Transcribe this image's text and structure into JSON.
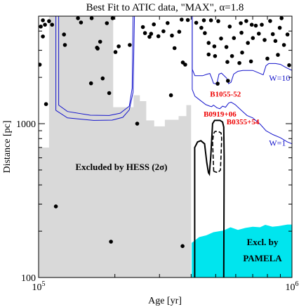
{
  "chart_data": {
    "type": "scatter",
    "title": "Best Fit to ATIC data, \"MAX\", α=1.8",
    "xlabel": "Age [yr]",
    "ylabel": "Distance [pc]",
    "xscale": "log",
    "yscale": "log",
    "xlim": [
      100000,
      1000000
    ],
    "ylim": [
      100,
      5000
    ],
    "grid": false,
    "x_ticks": [
      {
        "value": 100000,
        "base": "10",
        "exp": "5"
      },
      {
        "value": 1000000,
        "base": "10",
        "exp": "6"
      }
    ],
    "y_ticks": [
      {
        "value": 100,
        "label": "100"
      },
      {
        "value": 1000,
        "label": "1000"
      }
    ],
    "colors": {
      "hess_region": "#d9d9d9",
      "pamela_region": "#00e5ee",
      "contours": "#1515cc",
      "pulsar_labels": "#ee0000",
      "best_fit": "#000000"
    },
    "regions": [
      {
        "name": "hess-exclusion",
        "label": "Excluded by HESS (2σ)",
        "fill": "#d9d9d9",
        "points": [
          [
            100000,
            100
          ],
          [
            100000,
            700
          ],
          [
            110000,
            700
          ],
          [
            110000,
            5000
          ],
          [
            197000,
            5000
          ],
          [
            197000,
            1280
          ],
          [
            237000,
            1280
          ],
          [
            237000,
            1530
          ],
          [
            251000,
            1530
          ],
          [
            251000,
            1400
          ],
          [
            266000,
            1400
          ],
          [
            266000,
            1050
          ],
          [
            286000,
            1050
          ],
          [
            286000,
            960
          ],
          [
            315000,
            960
          ],
          [
            315000,
            1060
          ],
          [
            357000,
            1060
          ],
          [
            357000,
            1120
          ],
          [
            383000,
            1120
          ],
          [
            383000,
            1320
          ],
          [
            400000,
            1320
          ],
          [
            400000,
            100
          ]
        ]
      },
      {
        "name": "pamela-exclusion",
        "label_line1": "Excl. by",
        "label_line2": "PAMELA",
        "fill": "#00e5ee",
        "points": [
          [
            402000,
            100
          ],
          [
            402000,
            168
          ],
          [
            430000,
            183
          ],
          [
            459000,
            188
          ],
          [
            490000,
            197
          ],
          [
            537000,
            202
          ],
          [
            572000,
            212
          ],
          [
            612000,
            204
          ],
          [
            656000,
            210
          ],
          [
            700000,
            214
          ],
          [
            748000,
            212
          ],
          [
            785000,
            220
          ],
          [
            837000,
            214
          ],
          [
            888000,
            216
          ],
          [
            960000,
            221
          ],
          [
            1000000,
            221
          ],
          [
            1000000,
            100
          ]
        ]
      }
    ],
    "contours": [
      {
        "label": "W=10",
        "points": [
          [
            404000,
            5000
          ],
          [
            404000,
            2260
          ],
          [
            414000,
            2050
          ],
          [
            444000,
            2050
          ],
          [
            463000,
            2100
          ],
          [
            474000,
            2120
          ],
          [
            482000,
            1980
          ],
          [
            490000,
            1830
          ],
          [
            505000,
            1810
          ],
          [
            515000,
            2100
          ],
          [
            527000,
            2130
          ],
          [
            552000,
            1980
          ],
          [
            562000,
            1820
          ],
          [
            575000,
            1860
          ],
          [
            589000,
            2100
          ],
          [
            612000,
            2190
          ],
          [
            640000,
            2220
          ],
          [
            700000,
            2220
          ],
          [
            770000,
            2080
          ],
          [
            790000,
            2380
          ],
          [
            810000,
            2460
          ],
          [
            860000,
            2460
          ],
          [
            900000,
            2430
          ],
          [
            955000,
            2300
          ],
          [
            1000000,
            2220
          ]
        ]
      },
      {
        "label": "W=1",
        "points": [
          [
            404000,
            5000
          ],
          [
            404000,
            1670
          ],
          [
            414000,
            1510
          ],
          [
            434000,
            1420
          ],
          [
            457000,
            1330
          ],
          [
            474000,
            1300
          ],
          [
            482000,
            1290
          ],
          [
            490000,
            1320
          ],
          [
            505000,
            1270
          ],
          [
            519000,
            1250
          ],
          [
            532000,
            1300
          ],
          [
            547000,
            1280
          ],
          [
            562000,
            1360
          ],
          [
            575000,
            1380
          ],
          [
            597000,
            1330
          ],
          [
            628000,
            1230
          ],
          [
            665000,
            1130
          ],
          [
            700000,
            1090
          ],
          [
            750000,
            990
          ],
          [
            790000,
            900
          ],
          [
            840000,
            850
          ],
          [
            900000,
            810
          ],
          [
            960000,
            760
          ],
          [
            1000000,
            740
          ]
        ]
      },
      {
        "label": "",
        "points": [
          [
            120000,
            5000
          ],
          [
            120000,
            1320
          ],
          [
            130000,
            1200
          ],
          [
            160000,
            1135
          ],
          [
            190000,
            1130
          ],
          [
            210000,
            1170
          ],
          [
            228000,
            1300
          ],
          [
            234000,
            1700
          ],
          [
            236000,
            5000
          ]
        ]
      },
      {
        "label": "",
        "points": [
          [
            117000,
            5000
          ],
          [
            117000,
            1220
          ],
          [
            130000,
            1090
          ],
          [
            165000,
            1050
          ],
          [
            195000,
            1055
          ],
          [
            215000,
            1100
          ],
          [
            228000,
            1230
          ],
          [
            236000,
            1600
          ],
          [
            239000,
            5000
          ]
        ]
      }
    ],
    "best_fit_contour": {
      "solid": [
        [
          413000,
          100
        ],
        [
          413000,
          700
        ],
        [
          424000,
          760
        ],
        [
          437000,
          775
        ],
        [
          452000,
          740
        ],
        [
          461000,
          560
        ],
        [
          468000,
          480
        ],
        [
          472000,
          470
        ],
        [
          478000,
          610
        ],
        [
          486000,
          1000
        ],
        [
          495000,
          1050
        ],
        [
          520000,
          1050
        ],
        [
          532000,
          1025
        ],
        [
          538000,
          950
        ],
        [
          540000,
          600
        ],
        [
          538000,
          100
        ]
      ],
      "dashed": [
        [
          491000,
          490
        ],
        [
          486000,
          760
        ],
        [
          490000,
          860
        ],
        [
          497000,
          890
        ],
        [
          512000,
          890
        ],
        [
          525000,
          870
        ],
        [
          528000,
          800
        ],
        [
          522000,
          500
        ],
        [
          510000,
          480
        ],
        [
          491000,
          490
        ]
      ]
    },
    "annotations": [
      {
        "text": "B1055-52",
        "x": 475000,
        "y": 1500
      },
      {
        "text": "B0919+06",
        "x": 448000,
        "y": 1110
      },
      {
        "text": "B0355+54",
        "x": 552000,
        "y": 990
      },
      {
        "text": "W=10",
        "x": 812000,
        "y": 1900
      },
      {
        "text": "W=1",
        "x": 812000,
        "y": 720
      }
    ],
    "scatter": [
      {
        "x": 101000,
        "y": 2420
      },
      {
        "x": 102000,
        "y": 4280
      },
      {
        "x": 104000,
        "y": 4700
      },
      {
        "x": 104000,
        "y": 3690
      },
      {
        "x": 106000,
        "y": 4400
      },
      {
        "x": 107000,
        "y": 1340
      },
      {
        "x": 110000,
        "y": 4640
      },
      {
        "x": 113000,
        "y": 4400
      },
      {
        "x": 117000,
        "y": 290
      },
      {
        "x": 126000,
        "y": 3800
      },
      {
        "x": 127000,
        "y": 3250
      },
      {
        "x": 143000,
        "y": 4850
      },
      {
        "x": 147000,
        "y": 4550
      },
      {
        "x": 161000,
        "y": 1830
      },
      {
        "x": 162000,
        "y": 4850
      },
      {
        "x": 170000,
        "y": 3120
      },
      {
        "x": 171000,
        "y": 3080
      },
      {
        "x": 175000,
        "y": 3410
      },
      {
        "x": 179000,
        "y": 1970
      },
      {
        "x": 186000,
        "y": 4500
      },
      {
        "x": 190000,
        "y": 1580
      },
      {
        "x": 193000,
        "y": 171
      },
      {
        "x": 196000,
        "y": 4850
      },
      {
        "x": 201000,
        "y": 2920
      },
      {
        "x": 207000,
        "y": 3180
      },
      {
        "x": 229000,
        "y": 3250
      },
      {
        "x": 245000,
        "y": 1000
      },
      {
        "x": 258000,
        "y": 4250
      },
      {
        "x": 263000,
        "y": 3880
      },
      {
        "x": 274000,
        "y": 3670
      },
      {
        "x": 278000,
        "y": 3840
      },
      {
        "x": 285000,
        "y": 4420
      },
      {
        "x": 297000,
        "y": 3700
      },
      {
        "x": 311000,
        "y": 3990
      },
      {
        "x": 323000,
        "y": 4510
      },
      {
        "x": 333000,
        "y": 1530
      },
      {
        "x": 336000,
        "y": 3740
      },
      {
        "x": 344000,
        "y": 3100
      },
      {
        "x": 359000,
        "y": 3960
      },
      {
        "x": 367000,
        "y": 4750
      },
      {
        "x": 370000,
        "y": 160
      },
      {
        "x": 371000,
        "y": 2500
      },
      {
        "x": 379000,
        "y": 2420
      },
      {
        "x": 388000,
        "y": 4720
      },
      {
        "x": 419000,
        "y": 4530
      },
      {
        "x": 439000,
        "y": 4200
      },
      {
        "x": 449000,
        "y": 4700
      },
      {
        "x": 453000,
        "y": 3880
      },
      {
        "x": 469000,
        "y": 3350
      },
      {
        "x": 469000,
        "y": 2820
      },
      {
        "x": 479000,
        "y": 4700
      },
      {
        "x": 494000,
        "y": 3180
      },
      {
        "x": 497000,
        "y": 2750
      },
      {
        "x": 509000,
        "y": 1820
      },
      {
        "x": 512000,
        "y": 4640
      },
      {
        "x": 525000,
        "y": 3580
      },
      {
        "x": 551000,
        "y": 3150
      },
      {
        "x": 556000,
        "y": 2520
      },
      {
        "x": 559000,
        "y": 1900
      },
      {
        "x": 568000,
        "y": 4280
      },
      {
        "x": 580000,
        "y": 2750
      },
      {
        "x": 590000,
        "y": 3600
      },
      {
        "x": 620000,
        "y": 2480
      },
      {
        "x": 628000,
        "y": 4500
      },
      {
        "x": 632000,
        "y": 3900
      },
      {
        "x": 636000,
        "y": 2900
      },
      {
        "x": 660000,
        "y": 4650
      },
      {
        "x": 670000,
        "y": 3350
      },
      {
        "x": 689000,
        "y": 2540
      },
      {
        "x": 694000,
        "y": 4400
      },
      {
        "x": 701000,
        "y": 3600
      },
      {
        "x": 720000,
        "y": 4340
      },
      {
        "x": 740000,
        "y": 3850
      },
      {
        "x": 760000,
        "y": 4400
      },
      {
        "x": 780000,
        "y": 3500
      },
      {
        "x": 800000,
        "y": 2650
      },
      {
        "x": 820000,
        "y": 4650
      },
      {
        "x": 840000,
        "y": 3820
      },
      {
        "x": 860000,
        "y": 3450
      },
      {
        "x": 880000,
        "y": 2800
      },
      {
        "x": 895000,
        "y": 4200
      },
      {
        "x": 910000,
        "y": 4850
      },
      {
        "x": 930000,
        "y": 3250
      },
      {
        "x": 960000,
        "y": 3800
      },
      {
        "x": 975000,
        "y": 2400
      }
    ]
  }
}
